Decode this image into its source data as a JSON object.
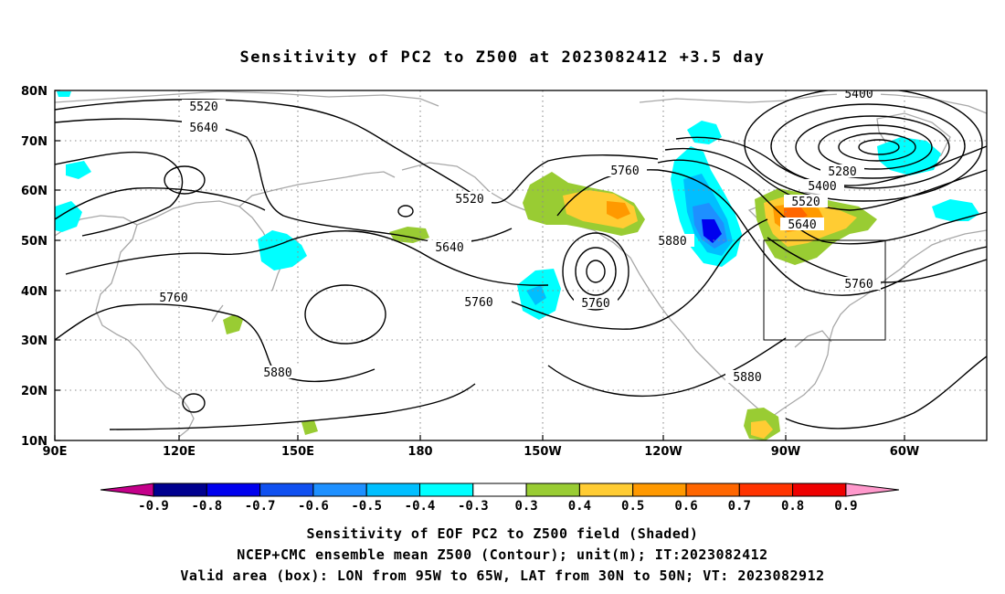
{
  "title": "Sensitivity of PC2 to Z500 at 2023082412 +3.5 day",
  "map": {
    "lat_ticks": [
      "80N",
      "70N",
      "60N",
      "50N",
      "40N",
      "30N",
      "20N",
      "10N"
    ],
    "lon_ticks": [
      "90E",
      "120E",
      "150E",
      "180",
      "150W",
      "120W",
      "90W",
      "60W"
    ],
    "grid": "dotted",
    "valid_box": {
      "lon_from": "95W",
      "lon_to": "65W",
      "lat_from": "30N",
      "lat_to": "50N"
    },
    "contour_labels": [
      "5400",
      "5520",
      "5640",
      "5280",
      "5400",
      "5520",
      "5640",
      "5760",
      "5520",
      "5640",
      "5760",
      "5880",
      "5760",
      "5760",
      "5880",
      "5760",
      "5880"
    ]
  },
  "colorbar": {
    "labels": [
      "-0.9",
      "-0.8",
      "-0.7",
      "-0.6",
      "-0.5",
      "-0.4",
      "-0.3",
      "0.3",
      "0.4",
      "0.5",
      "0.6",
      "0.7",
      "0.8",
      "0.9"
    ],
    "colors": [
      "#c4008a",
      "#00008f",
      "#0000ee",
      "#1050f0",
      "#1e90ff",
      "#00bfff",
      "#00ffff",
      "#ffffff",
      "#99cc33",
      "#ffcc33",
      "#ff9900",
      "#ff6600",
      "#ff3300",
      "#ee0000",
      "#ff99cc"
    ]
  },
  "captions": [
    "Sensitivity of EOF PC2 to Z500 field (Shaded)",
    "NCEP+CMC ensemble mean Z500 (Contour); unit(m); IT:2023082412",
    "Valid area (box): LON from 95W to 65W, LAT from 30N to 50N; VT: 2023082912"
  ]
}
